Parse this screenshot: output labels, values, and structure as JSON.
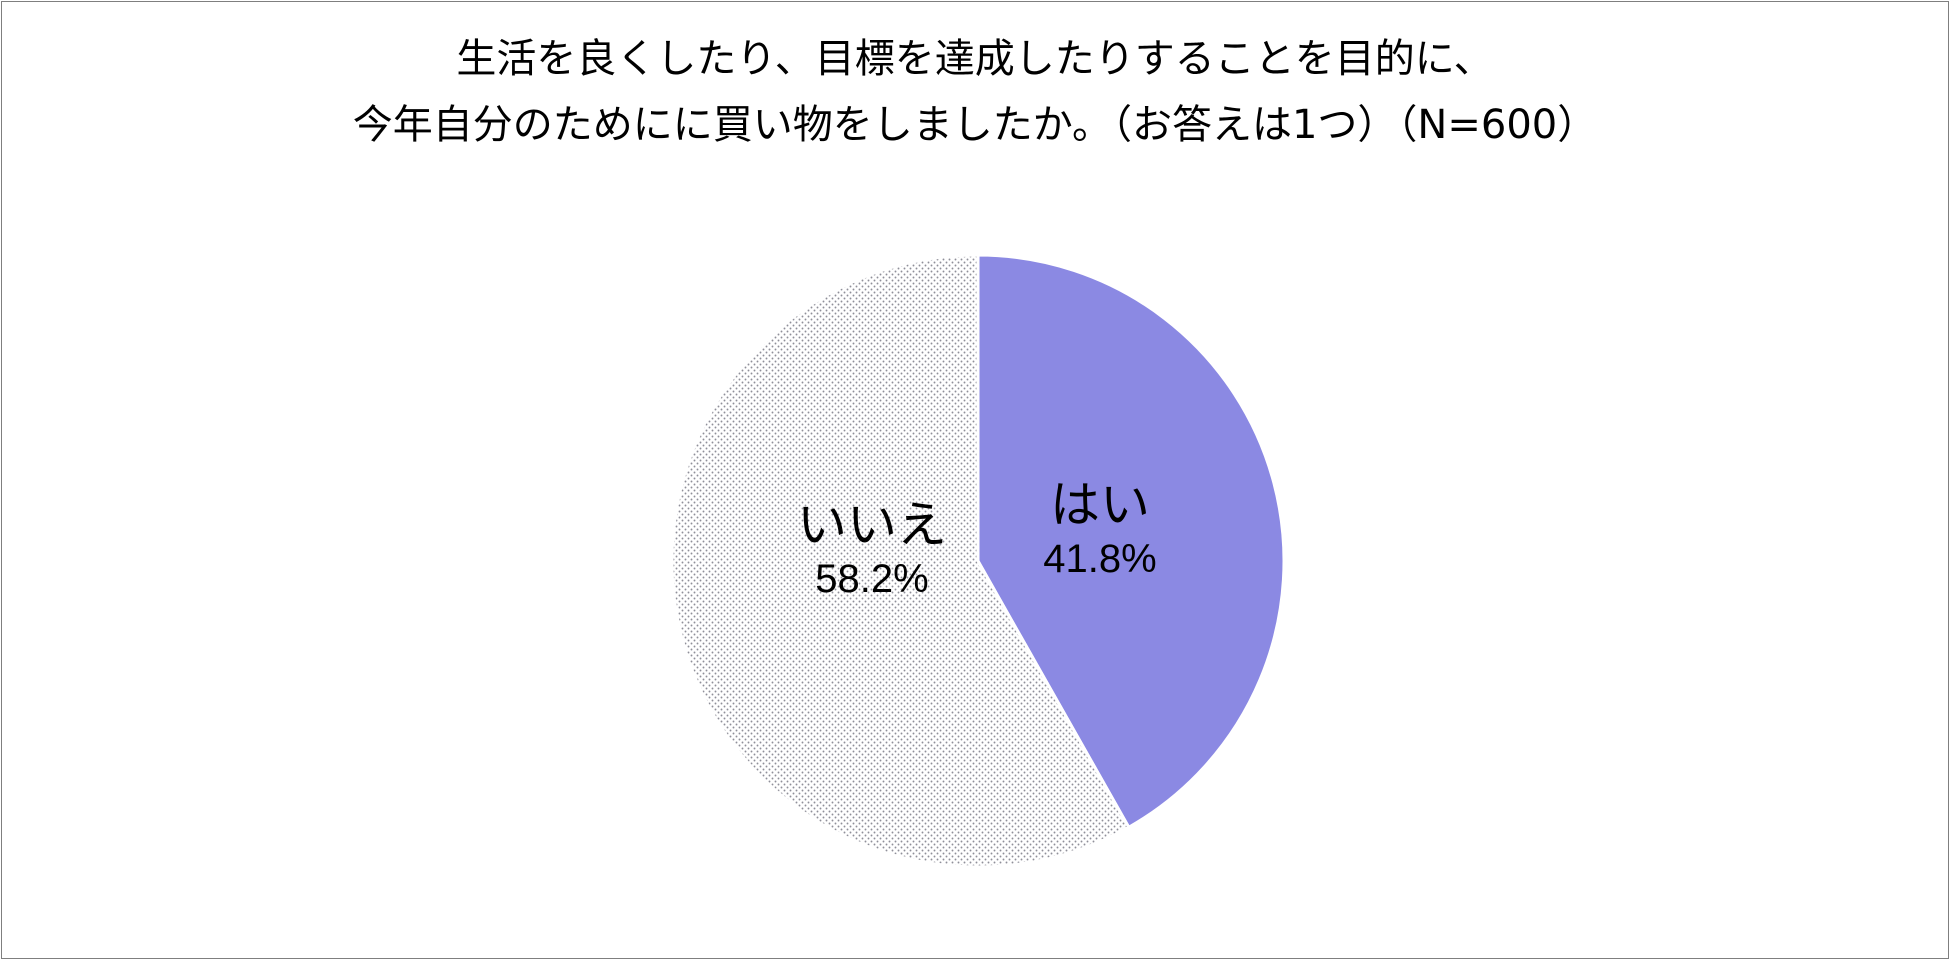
{
  "chart_data": {
    "type": "pie",
    "title_lines": [
      "生活を良くしたり、目標を達成したりすることを目的に、",
      "今年自分のためにに買い物をしましたか。（お答えは1つ）（N=600）"
    ],
    "slices": [
      {
        "label": "はい",
        "value": 41.8,
        "display": "41.8%",
        "color": "#8b89e3",
        "fill": "solid"
      },
      {
        "label": "いいえ",
        "value": 58.2,
        "display": "58.2%",
        "color": "#8f8f99",
        "fill": "dotted"
      }
    ]
  }
}
